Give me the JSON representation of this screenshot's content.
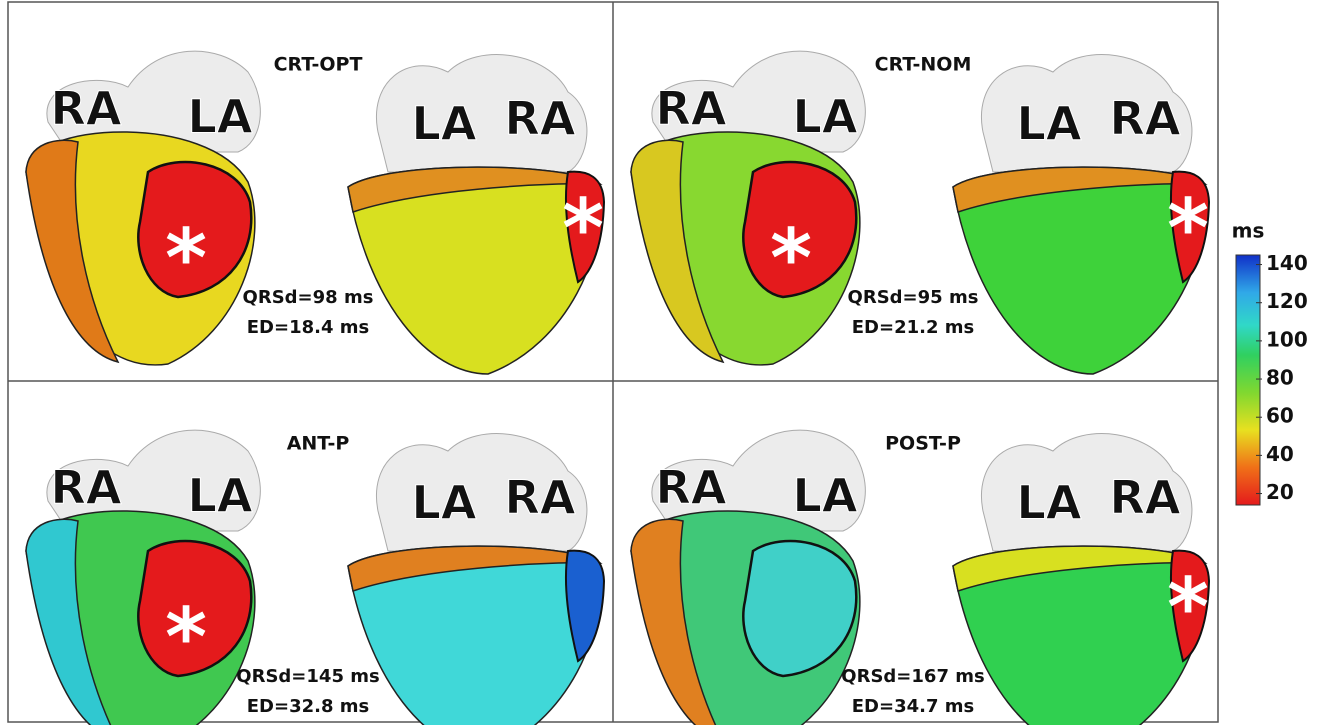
{
  "panels": [
    {
      "title": "CRT-OPT",
      "qrsd": "QRSd=98 ms",
      "ed": "ED=18.4 ms",
      "left_labels": [
        "RA",
        "LA"
      ],
      "right_labels": [
        "LA",
        "RA"
      ],
      "left_marker": "*",
      "right_marker": "*"
    },
    {
      "title": "CRT-NOM",
      "qrsd": "QRSd=95 ms",
      "ed": "ED=21.2 ms",
      "left_labels": [
        "RA",
        "LA"
      ],
      "right_labels": [
        "LA",
        "RA"
      ],
      "left_marker": "*",
      "right_marker": "*"
    },
    {
      "title": "ANT-P",
      "qrsd": "QRSd=145 ms",
      "ed": "ED=32.8 ms",
      "left_labels": [
        "RA",
        "LA"
      ],
      "right_labels": [
        "LA",
        "RA"
      ],
      "left_marker": "*"
    },
    {
      "title": "POST-P",
      "qrsd": "QRSd=167 ms",
      "ed": "ED=34.7 ms",
      "left_labels": [
        "RA",
        "LA"
      ],
      "right_labels": [
        "LA",
        "RA"
      ],
      "right_marker": "*"
    }
  ],
  "colorbar": {
    "unit": "ms",
    "lim": [
      14,
      145
    ],
    "ticks": [
      20,
      40,
      60,
      80,
      100,
      120,
      140
    ]
  }
}
